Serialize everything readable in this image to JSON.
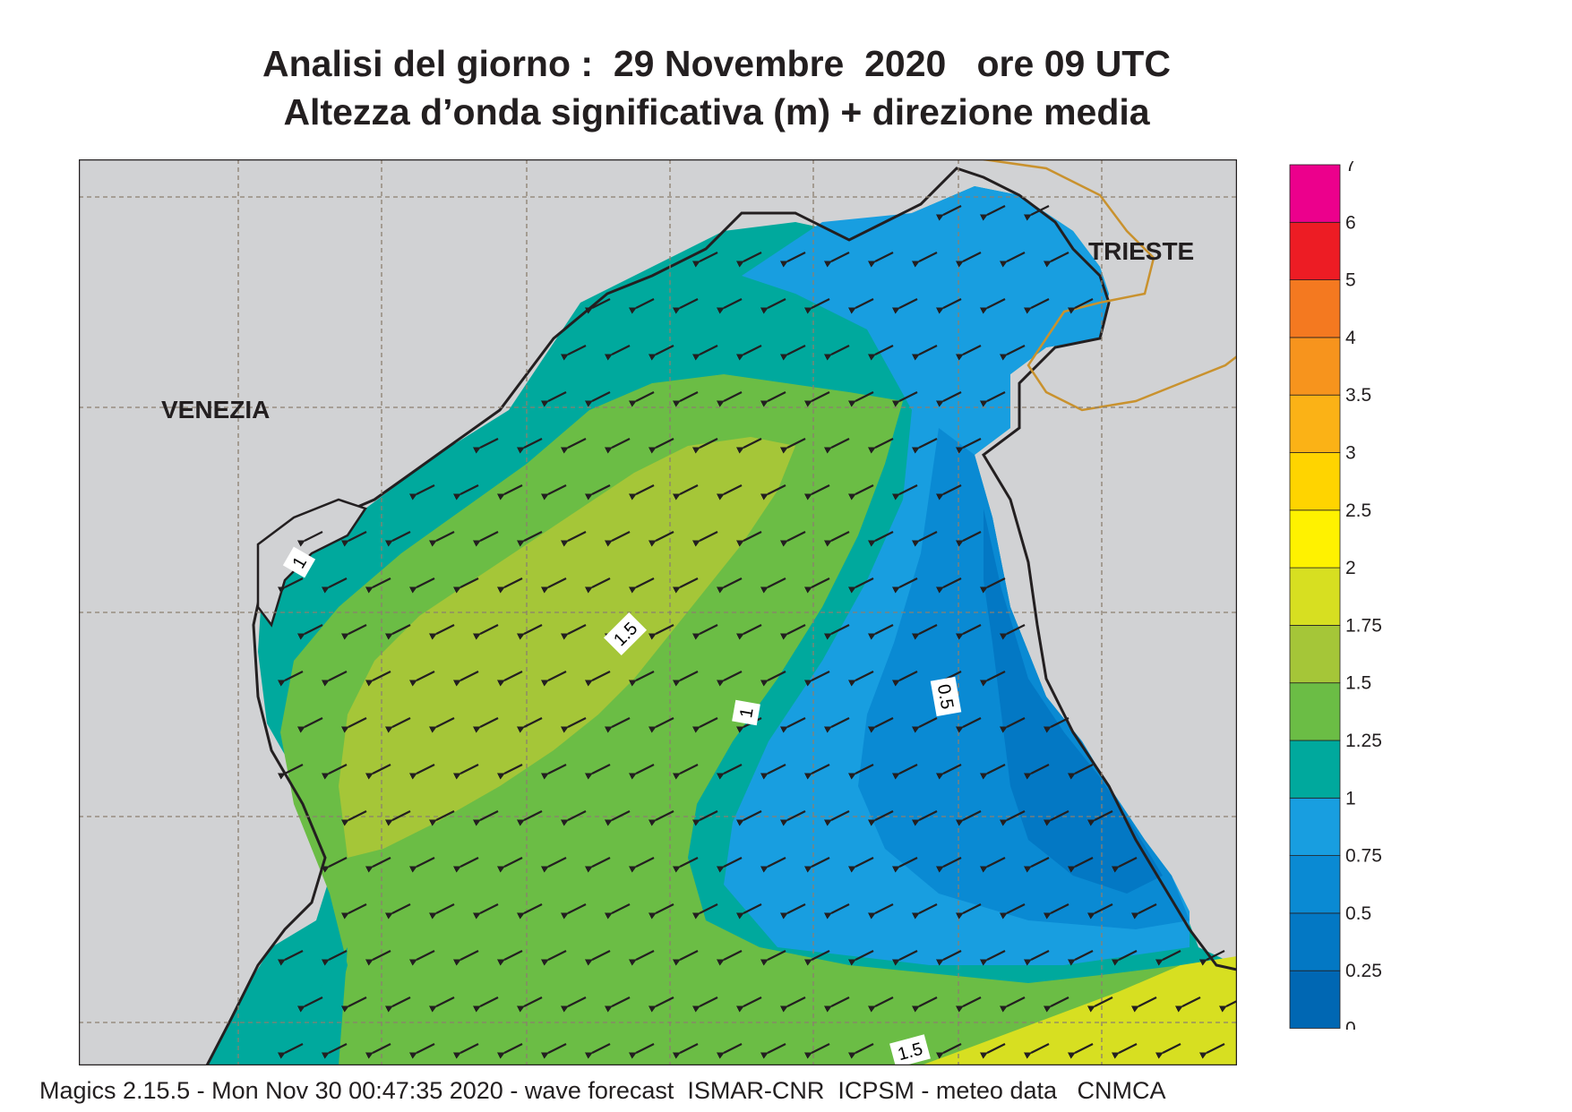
{
  "header": {
    "title_line1": "Analisi del giorno :  29 Novembre  2020   ore 09 UTC",
    "title_line2": "Altezza d’onda significativa (m) + direzione media"
  },
  "map": {
    "places": [
      {
        "name": "VENEZIA"
      },
      {
        "name": "TRIESTE"
      }
    ],
    "contour_labels": [
      "1",
      "1.5",
      "1",
      "0.5",
      "1.5"
    ],
    "colors": {
      "land": "#d1d2d4",
      "sea_0_25": "#0067b3",
      "sea_25_50": "#0378c4",
      "sea_50_75": "#0a8ad3",
      "sea_75_1": "#189ee0",
      "sea_1_125": "#00a99d",
      "sea_125_150": "#6bbd45",
      "sea_150_175": "#a5c638",
      "sea_175_2": "#d7df21",
      "arrow": "#231f20",
      "border": "#c9922e"
    },
    "arrow_direction": "south-west"
  },
  "legend": {
    "levels": [
      "0",
      "0.25",
      "0.5",
      "0.75",
      "1",
      "1.25",
      "1.5",
      "1.75",
      "2",
      "2.5",
      "3",
      "3.5",
      "4",
      "5",
      "6",
      "7"
    ],
    "colors": [
      "#0067b3",
      "#0378c4",
      "#0a8ad3",
      "#189ee0",
      "#00a99d",
      "#6bbd45",
      "#a5c638",
      "#d7df21",
      "#fff200",
      "#ffd400",
      "#fbb216",
      "#f7941d",
      "#f47920",
      "#ed1c24",
      "#ec008c"
    ]
  },
  "footer": {
    "text": "Magics 2.15.5 - Mon Nov 30 00:47:35 2020 - wave forecast  ISMAR-CNR  ICPSM - meteo data   CNMCA"
  }
}
